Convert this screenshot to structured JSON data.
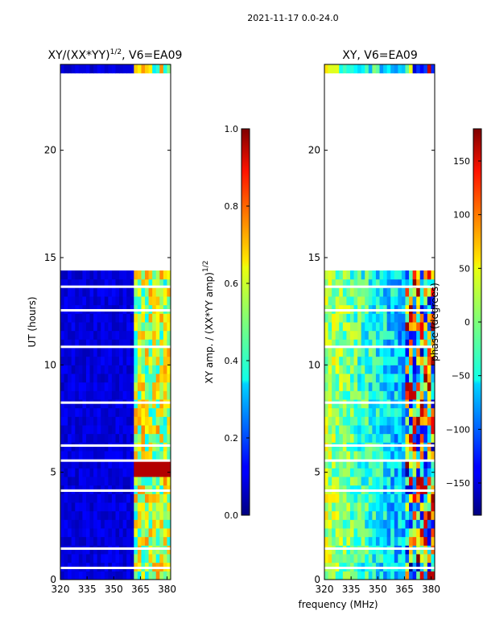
{
  "figure": {
    "suptitle": "2021-11-17 0.0-24.0",
    "xlabel": "frequency (MHz)"
  },
  "chart_data": [
    {
      "type": "heatmap",
      "title_base": "XY/(XX*YY)",
      "title_sup": "1/2",
      "title_suffix": ", V6=EA09",
      "ylabel": "UT (hours)",
      "xlim": [
        320,
        382
      ],
      "ylim": [
        0,
        24
      ],
      "xticks": [
        320,
        335,
        350,
        365,
        380
      ],
      "yticks": [
        0,
        5,
        10,
        15,
        20
      ],
      "colorbar": {
        "label_base": "XY amp. / (XX*YY amp)",
        "label_sup": "1/2",
        "range": [
          0.0,
          1.0
        ],
        "ticks": [
          "0.0",
          "0.2",
          "0.4",
          "0.6",
          "0.8",
          "1.0"
        ],
        "tick_values": [
          0.0,
          0.2,
          0.4,
          0.6,
          0.8,
          1.0
        ]
      },
      "data_coverage_hours": [
        [
          0.0,
          14.4
        ],
        [
          23.3,
          24.0
        ]
      ]
    },
    {
      "type": "heatmap",
      "title": "XY, V6=EA09",
      "ylabel": "",
      "xlim": [
        320,
        382
      ],
      "ylim": [
        0,
        24
      ],
      "xticks": [
        320,
        335,
        350,
        365,
        380
      ],
      "yticks": [
        0,
        5,
        10,
        15,
        20
      ],
      "colorbar": {
        "label": "phase (degrees)",
        "range": [
          -180,
          180
        ],
        "ticks": [
          "150",
          "100",
          "50",
          "0",
          "−50",
          "−100",
          "−150"
        ],
        "tick_values": [
          150,
          100,
          50,
          0,
          -50,
          -100,
          -150
        ]
      },
      "data_coverage_hours": [
        [
          0.0,
          14.4
        ],
        [
          23.3,
          24.0
        ]
      ]
    }
  ],
  "colors": {
    "jet_low": "#00007f",
    "jet_high": "#7f0000"
  }
}
